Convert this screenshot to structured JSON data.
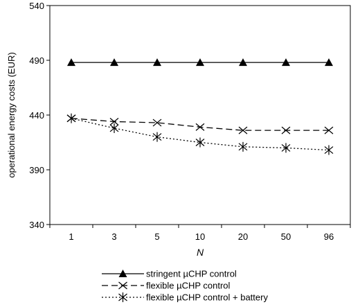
{
  "chart_data": {
    "type": "line",
    "title": "",
    "xlabel": "N",
    "ylabel": "operational energy costs (EUR)",
    "categories": [
      "1",
      "3",
      "5",
      "10",
      "20",
      "50",
      "96"
    ],
    "ylim": [
      340,
      540
    ],
    "yticks": [
      340,
      390,
      440,
      490,
      540
    ],
    "grid": false,
    "legend_position": "bottom",
    "series": [
      {
        "name": "stringent  µCHP control",
        "marker": "triangle",
        "line_style": "solid",
        "color": "#000000",
        "values": [
          488,
          488,
          488,
          488,
          488,
          488,
          488
        ]
      },
      {
        "name": "flexible  µCHP control",
        "marker": "x",
        "line_style": "dashed",
        "color": "#000000",
        "values": [
          437,
          434,
          433,
          429,
          426,
          426,
          426
        ]
      },
      {
        "name": "flexible  µCHP control + battery",
        "marker": "asterisk",
        "line_style": "dotted",
        "color": "#000000",
        "values": [
          437,
          428,
          420,
          415,
          411,
          410,
          408
        ]
      }
    ]
  }
}
